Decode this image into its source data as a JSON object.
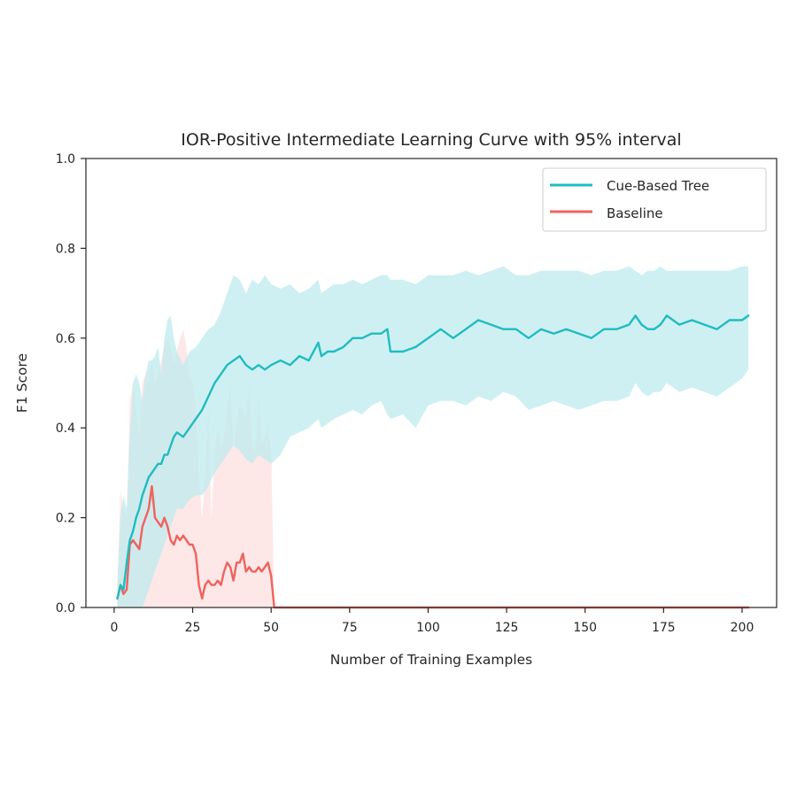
{
  "chart_data": {
    "type": "line",
    "title": "IOR-Positive Intermediate Learning Curve with 95% interval",
    "xlabel": "Number of Training Examples",
    "ylabel": "F1 Score",
    "xlim": [
      -9,
      211
    ],
    "ylim": [
      0,
      1.0
    ],
    "xticks": [
      0,
      25,
      50,
      75,
      100,
      125,
      150,
      175,
      200
    ],
    "xtick_labels": [
      "0",
      "25",
      "50",
      "75",
      "100",
      "125",
      "150",
      "175",
      "200"
    ],
    "yticks": [
      0.0,
      0.2,
      0.4,
      0.6,
      0.8,
      1.0
    ],
    "ytick_labels": [
      "0.0",
      "0.2",
      "0.4",
      "0.6",
      "0.8",
      "1.0"
    ],
    "grid": false,
    "legend_position": "top-right",
    "series": [
      {
        "name": "Cue-Based Tree",
        "color": "#1fbcc1",
        "band_color": "#bfebee",
        "x": [
          1,
          2,
          3,
          4,
          5,
          6,
          7,
          8,
          9,
          10,
          11,
          12,
          13,
          14,
          15,
          16,
          17,
          18,
          19,
          20,
          22,
          24,
          26,
          28,
          30,
          32,
          34,
          36,
          38,
          40,
          42,
          44,
          46,
          48,
          50,
          53,
          56,
          59,
          62,
          65,
          66,
          68,
          70,
          73,
          76,
          79,
          82,
          85,
          87,
          88,
          92,
          96,
          100,
          104,
          108,
          112,
          116,
          120,
          124,
          128,
          132,
          136,
          140,
          144,
          148,
          152,
          156,
          160,
          164,
          166,
          168,
          170,
          172,
          174,
          176,
          178,
          180,
          184,
          188,
          192,
          196,
          200,
          202
        ],
        "y": [
          0.02,
          0.05,
          0.04,
          0.1,
          0.15,
          0.17,
          0.2,
          0.22,
          0.25,
          0.27,
          0.29,
          0.3,
          0.31,
          0.32,
          0.32,
          0.34,
          0.34,
          0.36,
          0.38,
          0.39,
          0.38,
          0.4,
          0.42,
          0.44,
          0.47,
          0.5,
          0.52,
          0.54,
          0.55,
          0.56,
          0.54,
          0.53,
          0.54,
          0.53,
          0.54,
          0.55,
          0.54,
          0.56,
          0.55,
          0.59,
          0.56,
          0.57,
          0.57,
          0.58,
          0.6,
          0.6,
          0.61,
          0.61,
          0.62,
          0.57,
          0.57,
          0.58,
          0.6,
          0.62,
          0.6,
          0.62,
          0.64,
          0.63,
          0.62,
          0.62,
          0.6,
          0.62,
          0.61,
          0.62,
          0.61,
          0.6,
          0.62,
          0.62,
          0.63,
          0.65,
          0.63,
          0.62,
          0.62,
          0.63,
          0.65,
          0.64,
          0.63,
          0.64,
          0.63,
          0.62,
          0.64,
          0.64,
          0.65
        ],
        "upper": [
          0.05,
          0.2,
          0.25,
          0.22,
          0.38,
          0.5,
          0.52,
          0.5,
          0.46,
          0.52,
          0.55,
          0.55,
          0.56,
          0.58,
          0.52,
          0.6,
          0.64,
          0.65,
          0.6,
          0.57,
          0.54,
          0.57,
          0.58,
          0.6,
          0.62,
          0.63,
          0.66,
          0.7,
          0.74,
          0.73,
          0.7,
          0.73,
          0.72,
          0.74,
          0.72,
          0.71,
          0.72,
          0.7,
          0.71,
          0.73,
          0.7,
          0.71,
          0.72,
          0.72,
          0.73,
          0.72,
          0.73,
          0.74,
          0.74,
          0.73,
          0.73,
          0.72,
          0.74,
          0.74,
          0.74,
          0.75,
          0.74,
          0.75,
          0.76,
          0.74,
          0.74,
          0.75,
          0.75,
          0.75,
          0.75,
          0.74,
          0.75,
          0.75,
          0.76,
          0.75,
          0.74,
          0.75,
          0.75,
          0.76,
          0.75,
          0.75,
          0.75,
          0.75,
          0.75,
          0.75,
          0.75,
          0.76,
          0.76
        ],
        "lower": [
          0.0,
          0.0,
          0.0,
          0.0,
          0.0,
          0.0,
          0.0,
          0.0,
          0.0,
          0.02,
          0.04,
          0.06,
          0.08,
          0.1,
          0.12,
          0.14,
          0.16,
          0.18,
          0.2,
          0.22,
          0.22,
          0.24,
          0.25,
          0.25,
          0.27,
          0.3,
          0.32,
          0.34,
          0.36,
          0.35,
          0.33,
          0.32,
          0.34,
          0.33,
          0.32,
          0.34,
          0.38,
          0.39,
          0.4,
          0.42,
          0.4,
          0.41,
          0.42,
          0.43,
          0.44,
          0.43,
          0.45,
          0.46,
          0.43,
          0.42,
          0.43,
          0.4,
          0.45,
          0.46,
          0.46,
          0.45,
          0.47,
          0.46,
          0.48,
          0.47,
          0.44,
          0.45,
          0.46,
          0.45,
          0.44,
          0.45,
          0.46,
          0.46,
          0.47,
          0.5,
          0.48,
          0.47,
          0.48,
          0.48,
          0.5,
          0.49,
          0.48,
          0.49,
          0.48,
          0.47,
          0.49,
          0.51,
          0.53
        ]
      },
      {
        "name": "Baseline",
        "color": "#f0625e",
        "band_color": "#fce0df",
        "x": [
          1,
          2,
          3,
          4,
          5,
          6,
          7,
          8,
          9,
          10,
          11,
          12,
          13,
          14,
          15,
          16,
          17,
          18,
          19,
          20,
          21,
          22,
          23,
          24,
          25,
          26,
          27,
          28,
          29,
          30,
          31,
          32,
          33,
          34,
          35,
          36,
          37,
          38,
          39,
          40,
          41,
          42,
          43,
          44,
          45,
          46,
          47,
          48,
          49,
          50,
          51,
          60,
          80,
          100,
          120,
          140,
          160,
          180,
          202
        ],
        "y": [
          0.02,
          0.05,
          0.03,
          0.04,
          0.14,
          0.15,
          0.14,
          0.13,
          0.18,
          0.2,
          0.22,
          0.27,
          0.2,
          0.19,
          0.18,
          0.2,
          0.18,
          0.15,
          0.14,
          0.16,
          0.15,
          0.16,
          0.15,
          0.14,
          0.14,
          0.12,
          0.05,
          0.02,
          0.05,
          0.06,
          0.05,
          0.05,
          0.06,
          0.05,
          0.08,
          0.1,
          0.09,
          0.06,
          0.1,
          0.1,
          0.12,
          0.08,
          0.09,
          0.08,
          0.08,
          0.09,
          0.08,
          0.09,
          0.1,
          0.07,
          0.0,
          0.0,
          0.0,
          0.0,
          0.0,
          0.0,
          0.0,
          0.0,
          0.0
        ],
        "upper": [
          0.05,
          0.26,
          0.22,
          0.2,
          0.46,
          0.5,
          0.44,
          0.38,
          0.5,
          0.52,
          0.5,
          0.55,
          0.5,
          0.52,
          0.55,
          0.58,
          0.6,
          0.58,
          0.54,
          0.57,
          0.6,
          0.62,
          0.58,
          0.52,
          0.5,
          0.45,
          0.3,
          0.2,
          0.3,
          0.45,
          0.2,
          0.35,
          0.4,
          0.36,
          0.38,
          0.44,
          0.5,
          0.35,
          0.42,
          0.45,
          0.44,
          0.42,
          0.5,
          0.36,
          0.35,
          0.48,
          0.36,
          0.38,
          0.4,
          0.35,
          0.0,
          0.0,
          0.0,
          0.0,
          0.0,
          0.0,
          0.0,
          0.0,
          0.0
        ],
        "lower": [
          0.0,
          0.0,
          0.0,
          0.0,
          0.0,
          0.0,
          0.0,
          0.0,
          0.0,
          0.0,
          0.0,
          0.0,
          0.0,
          0.0,
          0.0,
          0.0,
          0.0,
          0.0,
          0.0,
          0.0,
          0.0,
          0.0,
          0.0,
          0.0,
          0.0,
          0.0,
          0.0,
          0.0,
          0.0,
          0.0,
          0.0,
          0.0,
          0.0,
          0.0,
          0.0,
          0.0,
          0.0,
          0.0,
          0.0,
          0.0,
          0.0,
          0.0,
          0.0,
          0.0,
          0.0,
          0.0,
          0.0,
          0.0,
          0.0,
          0.0,
          0.0,
          0.0,
          0.0,
          0.0,
          0.0,
          0.0,
          0.0,
          0.0,
          0.0
        ]
      }
    ]
  }
}
